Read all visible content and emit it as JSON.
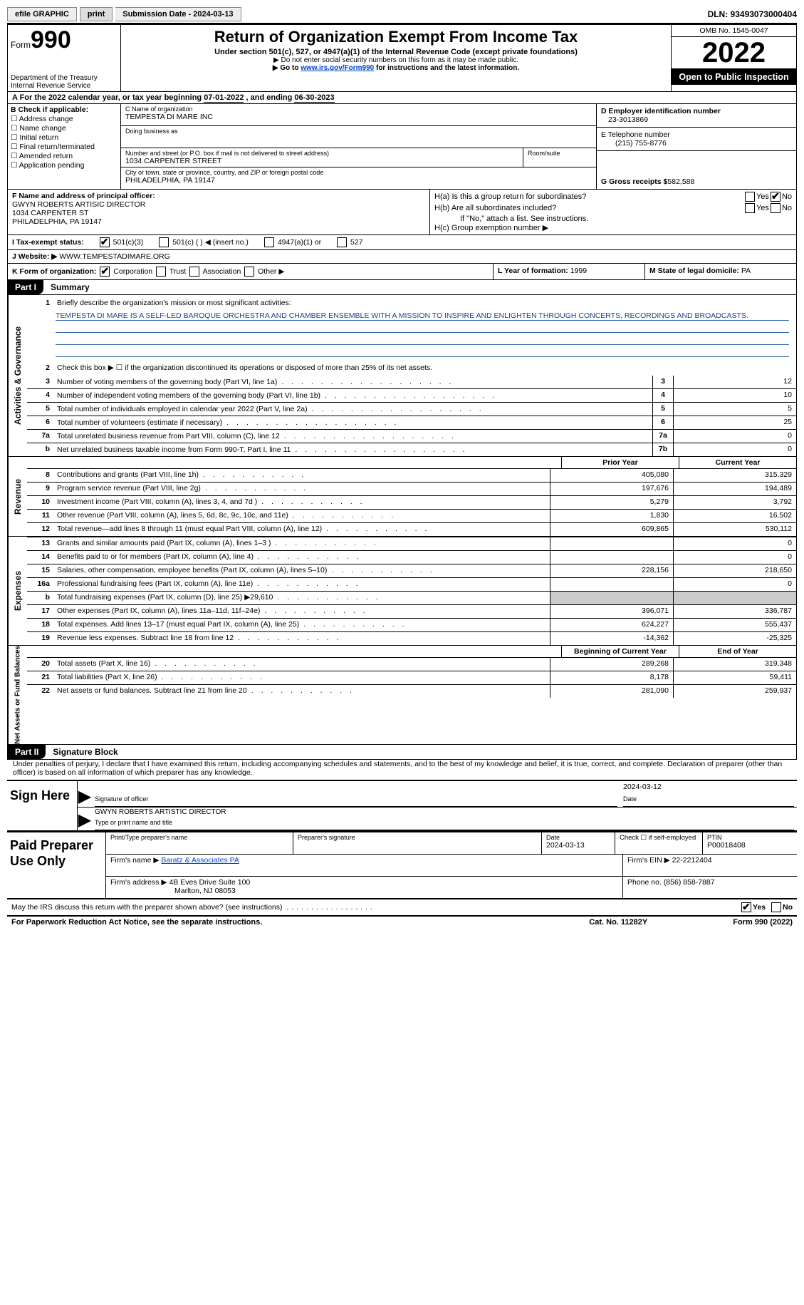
{
  "topbar": {
    "efile": "efile GRAPHIC",
    "print": "print",
    "sub_date_label": "Submission Date - ",
    "sub_date": "2024-03-13",
    "dln": "DLN: 93493073000404"
  },
  "header": {
    "form_word": "Form",
    "form_num": "990",
    "dept": "Department of the Treasury\nInternal Revenue Service",
    "title": "Return of Organization Exempt From Income Tax",
    "subtitle": "Under section 501(c), 527, or 4947(a)(1) of the Internal Revenue Code (except private foundations)",
    "note1": "▶ Do not enter social security numbers on this form as it may be made public.",
    "note2_pre": "▶ Go to ",
    "note2_link": "www.irs.gov/Form990",
    "note2_post": " for instructions and the latest information.",
    "omb": "OMB No. 1545-0047",
    "year": "2022",
    "inspect": "Open to Public Inspection"
  },
  "period": {
    "line_a": "A For the 2022 calendar year, or tax year beginning ",
    "begin": "07-01-2022",
    "mid": " , and ending ",
    "end": "06-30-2023"
  },
  "box_b": {
    "label": "B Check if applicable:",
    "opts": [
      "Address change",
      "Name change",
      "Initial return",
      "Final return/terminated",
      "Amended return",
      "Application pending"
    ]
  },
  "box_c": {
    "name_label": "C Name of organization",
    "name": "TEMPESTA DI MARE INC",
    "dba_label": "Doing business as",
    "dba": "",
    "addr_label": "Number and street (or P.O. box if mail is not delivered to street address)",
    "room_label": "Room/suite",
    "addr": "1034 CARPENTER STREET",
    "city_label": "City or town, state or province, country, and ZIP or foreign postal code",
    "city": "PHILADELPHIA, PA  19147"
  },
  "box_d": {
    "ein_label": "D Employer identification number",
    "ein": "23-3013869",
    "tel_label": "E Telephone number",
    "tel": "(215) 755-8776",
    "gross_label": "G Gross receipts $",
    "gross": " 582,588"
  },
  "box_f": {
    "label": "F  Name and address of principal officer:",
    "name": "GWYN ROBERTS ARTISIC DIRECTOR",
    "addr1": "1034 CARPENTER ST",
    "addr2": "PHILADELPHIA, PA  19147"
  },
  "box_h": {
    "a_label": "H(a)  Is this a group return for subordinates?",
    "b_label": "H(b)  Are all subordinates included?",
    "b_note": "If \"No,\" attach a list. See instructions.",
    "c_label": "H(c)  Group exemption number ▶",
    "yes": "Yes",
    "no": "No"
  },
  "row_i": {
    "label": "I  Tax-exempt status:",
    "opt1": "501(c)(3)",
    "opt2": "501(c) (  ) ◀ (insert no.)",
    "opt3": "4947(a)(1) or",
    "opt4": "527"
  },
  "row_j": {
    "label": "J  Website: ▶",
    "val": "  WWW.TEMPESTADIMARE.ORG"
  },
  "row_k": {
    "k_label": "K Form of organization:",
    "opts": [
      "Corporation",
      "Trust",
      "Association",
      "Other ▶"
    ],
    "l_label": "L Year of formation: ",
    "l_val": "1999",
    "m_label": "M State of legal domicile: ",
    "m_val": "PA"
  },
  "part1": {
    "header": "Part I",
    "title": "Summary",
    "side1": "Activities & Governance",
    "side2": "Revenue",
    "side3": "Expenses",
    "side4": "Net Assets or Fund Balances",
    "line1_label": "Briefly describe the organization's mission or most significant activities:",
    "mission": "TEMPESTA DI MARE IS A SELF-LED BAROQUE ORCHESTRA AND CHAMBER ENSEMBLE WITH A MISSION TO INSPIRE AND ENLIGHTEN THROUGH CONCERTS, RECORDINGS AND BROADCASTS.",
    "line2": "Check this box ▶ ☐  if the organization discontinued its operations or disposed of more than 25% of its net assets.",
    "rows_a": [
      {
        "n": "3",
        "d": "Number of voting members of the governing body (Part VI, line 1a)",
        "box": "3",
        "v": "12"
      },
      {
        "n": "4",
        "d": "Number of independent voting members of the governing body (Part VI, line 1b)",
        "box": "4",
        "v": "10"
      },
      {
        "n": "5",
        "d": "Total number of individuals employed in calendar year 2022 (Part V, line 2a)",
        "box": "5",
        "v": "5"
      },
      {
        "n": "6",
        "d": "Total number of volunteers (estimate if necessary)",
        "box": "6",
        "v": "25"
      },
      {
        "n": "7a",
        "d": "Total unrelated business revenue from Part VIII, column (C), line 12",
        "box": "7a",
        "v": "0"
      },
      {
        "n": "b",
        "d": "Net unrelated business taxable income from Form 990-T, Part I, line 11",
        "box": "7b",
        "v": "0"
      }
    ],
    "col_prior": "Prior Year",
    "col_current": "Current Year",
    "rows_rev": [
      {
        "n": "8",
        "d": "Contributions and grants (Part VIII, line 1h)",
        "v1": "405,080",
        "v2": "315,329"
      },
      {
        "n": "9",
        "d": "Program service revenue (Part VIII, line 2g)",
        "v1": "197,676",
        "v2": "194,489"
      },
      {
        "n": "10",
        "d": "Investment income (Part VIII, column (A), lines 3, 4, and 7d )",
        "v1": "5,279",
        "v2": "3,792"
      },
      {
        "n": "11",
        "d": "Other revenue (Part VIII, column (A), lines 5, 6d, 8c, 9c, 10c, and 11e)",
        "v1": "1,830",
        "v2": "16,502"
      },
      {
        "n": "12",
        "d": "Total revenue—add lines 8 through 11 (must equal Part VIII, column (A), line 12)",
        "v1": "609,865",
        "v2": "530,112"
      }
    ],
    "rows_exp": [
      {
        "n": "13",
        "d": "Grants and similar amounts paid (Part IX, column (A), lines 1–3 )",
        "v1": "",
        "v2": "0"
      },
      {
        "n": "14",
        "d": "Benefits paid to or for members (Part IX, column (A), line 4)",
        "v1": "",
        "v2": "0"
      },
      {
        "n": "15",
        "d": "Salaries, other compensation, employee benefits (Part IX, column (A), lines 5–10)",
        "v1": "228,156",
        "v2": "218,650"
      },
      {
        "n": "16a",
        "d": "Professional fundraising fees (Part IX, column (A), line 11e)",
        "v1": "",
        "v2": "0"
      },
      {
        "n": "b",
        "d": "Total fundraising expenses (Part IX, column (D), line 25) ▶29,610",
        "v1": "SHADE",
        "v2": "SHADE"
      },
      {
        "n": "17",
        "d": "Other expenses (Part IX, column (A), lines 11a–11d, 11f–24e)",
        "v1": "396,071",
        "v2": "336,787"
      },
      {
        "n": "18",
        "d": "Total expenses. Add lines 13–17 (must equal Part IX, column (A), line 25)",
        "v1": "624,227",
        "v2": "555,437"
      },
      {
        "n": "19",
        "d": "Revenue less expenses. Subtract line 18 from line 12",
        "v1": "-14,362",
        "v2": "-25,325"
      }
    ],
    "col_begin": "Beginning of Current Year",
    "col_end": "End of Year",
    "rows_net": [
      {
        "n": "20",
        "d": "Total assets (Part X, line 16)",
        "v1": "289,268",
        "v2": "319,348"
      },
      {
        "n": "21",
        "d": "Total liabilities (Part X, line 26)",
        "v1": "8,178",
        "v2": "59,411"
      },
      {
        "n": "22",
        "d": "Net assets or fund balances. Subtract line 21 from line 20",
        "v1": "281,090",
        "v2": "259,937"
      }
    ]
  },
  "part2": {
    "header": "Part II",
    "title": "Signature Block",
    "declaration": "Under penalties of perjury, I declare that I have examined this return, including accompanying schedules and statements, and to the best of my knowledge and belief, it is true, correct, and complete. Declaration of preparer (other than officer) is based on all information of which preparer has any knowledge.",
    "sign_here": "Sign Here",
    "sig_officer": "Signature of officer",
    "sig_date": "2024-03-12",
    "date_label": "Date",
    "officer_name": "GWYN ROBERTS  ARTISTIC DIRECTOR",
    "type_name": "Type or print name and title",
    "paid_prep": "Paid Preparer Use Only",
    "prep_name_label": "Print/Type preparer's name",
    "prep_sig_label": "Preparer's signature",
    "prep_date_label": "Date",
    "prep_date": "2024-03-13",
    "check_self": "Check ☐ if self-employed",
    "ptin_label": "PTIN",
    "ptin": "P00018408",
    "firm_name_label": "Firm's name     ▶",
    "firm_name": "Baratz & Associates PA",
    "firm_ein_label": "Firm's EIN ▶",
    "firm_ein": "22-2212404",
    "firm_addr_label": "Firm's address ▶",
    "firm_addr1": "4B Eves Drive Suite 100",
    "firm_addr2": "Marlton, NJ  08053",
    "phone_label": "Phone no.",
    "phone": "(856) 858-7887",
    "discuss": "May the IRS discuss this return with the preparer shown above? (see instructions)",
    "yes": "Yes",
    "no": "No"
  },
  "footer": {
    "left": "For Paperwork Reduction Act Notice, see the separate instructions.",
    "mid": "Cat. No. 11282Y",
    "right": "Form 990 (2022)"
  }
}
